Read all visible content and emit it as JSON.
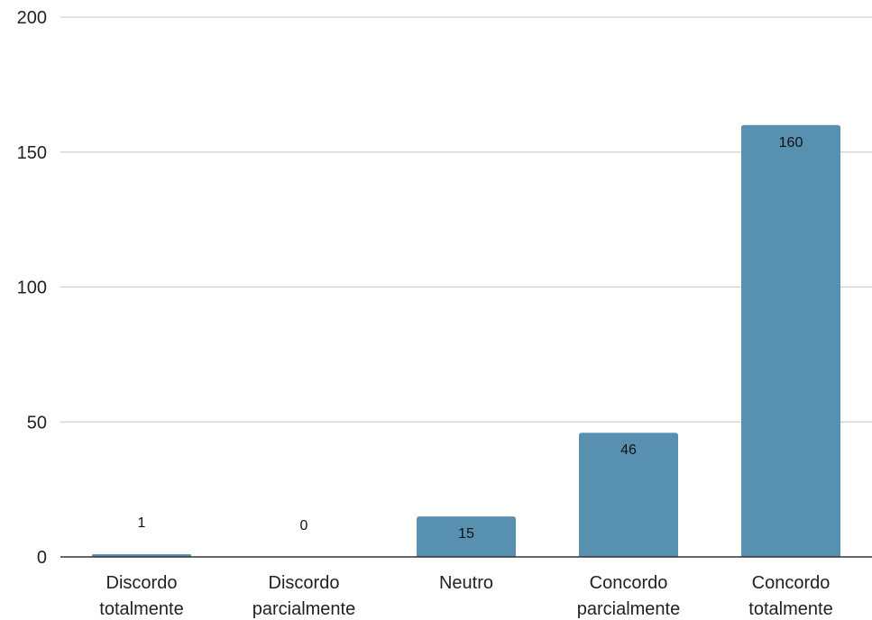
{
  "chart_data": {
    "type": "bar",
    "categories": [
      [
        "Discordo",
        "totalmente"
      ],
      [
        "Discordo",
        "parcialmente"
      ],
      [
        "Neutro"
      ],
      [
        "Concordo",
        "parcialmente"
      ],
      [
        "Concordo",
        "totalmente"
      ]
    ],
    "values": [
      1,
      0,
      15,
      46,
      160
    ],
    "ylim": [
      0,
      200
    ],
    "yticks": [
      0,
      50,
      100,
      150,
      200
    ],
    "grid": true,
    "data_labels": true,
    "bar_color": "#5891b0"
  }
}
